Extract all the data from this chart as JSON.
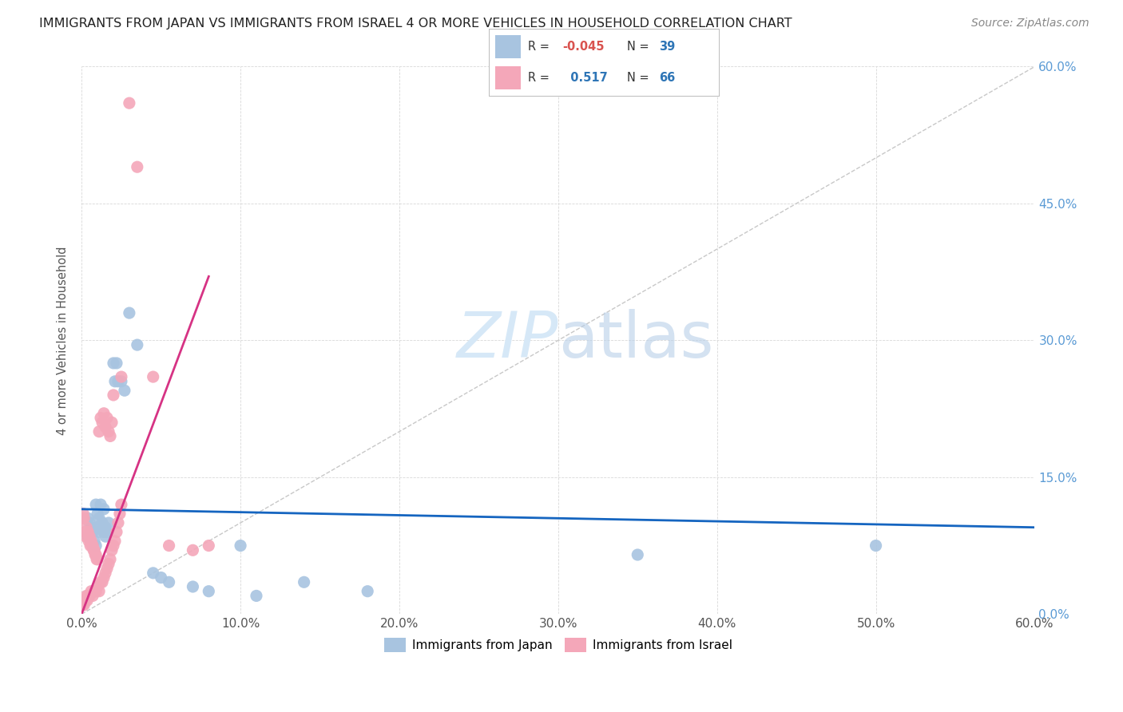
{
  "title": "IMMIGRANTS FROM JAPAN VS IMMIGRANTS FROM ISRAEL 4 OR MORE VEHICLES IN HOUSEHOLD CORRELATION CHART",
  "source": "Source: ZipAtlas.com",
  "ylabel": "4 or more Vehicles in Household",
  "y_ticks_right": [
    "0.0%",
    "15.0%",
    "30.0%",
    "45.0%",
    "60.0%"
  ],
  "y_tick_vals": [
    0.0,
    15.0,
    30.0,
    45.0,
    60.0
  ],
  "x_ticks": [
    "0.0%",
    "10.0%",
    "20.0%",
    "30.0%",
    "40.0%",
    "50.0%",
    "60.0%"
  ],
  "x_tick_vals": [
    0.0,
    10.0,
    20.0,
    30.0,
    40.0,
    50.0,
    60.0
  ],
  "legend_japan": "Immigrants from Japan",
  "legend_israel": "Immigrants from Israel",
  "R_japan": -0.045,
  "N_japan": 39,
  "R_israel": 0.517,
  "N_israel": 66,
  "japan_color": "#a8c4e0",
  "israel_color": "#f4a7b9",
  "japan_line_color": "#1565C0",
  "israel_line_color": "#d63384",
  "diagonal_color": "#c8c8c8",
  "watermark_color": "#d6e8f7",
  "background_color": "#ffffff",
  "japan_scatter_x": [
    0.4,
    0.4,
    0.5,
    0.6,
    0.7,
    0.8,
    0.9,
    0.9,
    1.0,
    1.0,
    1.1,
    1.1,
    1.2,
    1.3,
    1.4,
    1.4,
    1.5,
    1.5,
    1.6,
    1.7,
    2.0,
    2.1,
    2.2,
    2.3,
    2.5,
    2.7,
    3.0,
    3.5,
    4.5,
    5.0,
    5.5,
    7.0,
    8.0,
    10.0,
    11.0,
    14.0,
    18.0,
    35.0,
    50.0
  ],
  "japan_scatter_y": [
    8.5,
    10.5,
    10.0,
    9.5,
    9.0,
    8.0,
    7.5,
    12.0,
    11.0,
    9.5,
    10.5,
    9.0,
    12.0,
    10.0,
    9.0,
    11.5,
    8.5,
    9.5,
    9.0,
    10.0,
    27.5,
    25.5,
    27.5,
    25.5,
    25.5,
    24.5,
    33.0,
    29.5,
    4.5,
    4.0,
    3.5,
    3.0,
    2.5,
    7.5,
    2.0,
    3.5,
    2.5,
    6.5,
    7.5
  ],
  "israel_scatter_x": [
    0.05,
    0.1,
    0.15,
    0.2,
    0.25,
    0.3,
    0.35,
    0.4,
    0.5,
    0.6,
    0.7,
    0.8,
    0.9,
    1.0,
    1.1,
    1.2,
    1.3,
    1.4,
    1.5,
    1.6,
    1.7,
    1.8,
    1.9,
    2.0,
    2.1,
    2.2,
    2.3,
    2.4,
    2.5,
    0.05,
    0.1,
    0.15,
    0.2,
    0.25,
    0.3,
    0.35,
    0.4,
    0.45,
    0.5,
    0.55,
    0.6,
    0.65,
    0.7,
    0.75,
    0.8,
    0.85,
    0.9,
    0.95,
    1.0,
    1.1,
    1.2,
    1.3,
    1.4,
    1.5,
    1.6,
    1.7,
    1.8,
    1.9,
    2.0,
    2.5,
    3.0,
    3.5,
    4.5,
    5.5,
    7.0,
    8.0
  ],
  "israel_scatter_y": [
    1.0,
    1.5,
    1.0,
    1.5,
    1.5,
    2.0,
    1.5,
    2.0,
    2.0,
    2.5,
    2.0,
    2.5,
    2.5,
    3.0,
    2.5,
    3.5,
    3.5,
    4.0,
    4.5,
    5.0,
    5.5,
    6.0,
    7.0,
    7.5,
    8.0,
    9.0,
    10.0,
    11.0,
    12.0,
    10.5,
    11.0,
    10.5,
    9.0,
    8.5,
    9.5,
    9.0,
    9.0,
    8.0,
    8.5,
    7.5,
    8.0,
    7.5,
    7.5,
    7.0,
    7.0,
    6.5,
    6.5,
    6.0,
    6.0,
    20.0,
    21.5,
    21.0,
    22.0,
    20.5,
    21.5,
    20.0,
    19.5,
    21.0,
    24.0,
    26.0,
    56.0,
    49.0,
    26.0,
    7.5,
    7.0,
    7.5
  ],
  "japan_line_x": [
    0.0,
    60.0
  ],
  "japan_line_y": [
    11.5,
    9.5
  ],
  "israel_line_x": [
    0.0,
    8.0
  ],
  "israel_line_y": [
    0.0,
    37.0
  ]
}
